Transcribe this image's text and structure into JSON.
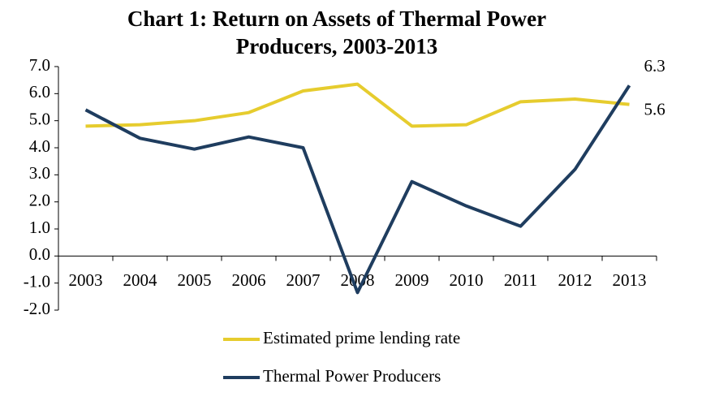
{
  "chart_data": {
    "type": "line",
    "title": "Chart 1: Return on Assets of Thermal Power Producers, 2003-2013",
    "categories": [
      "2003",
      "2004",
      "2005",
      "2006",
      "2007",
      "2008",
      "2009",
      "2010",
      "2011",
      "2012",
      "2013"
    ],
    "series": [
      {
        "name": "Estimated prime lending rate",
        "color": "#e6cc2e",
        "values": [
          4.8,
          4.85,
          5.0,
          5.3,
          6.1,
          6.35,
          4.8,
          4.85,
          5.7,
          5.8,
          5.6
        ]
      },
      {
        "name": "Thermal Power Producers",
        "color": "#1f3d5f",
        "values": [
          5.4,
          4.35,
          3.95,
          4.4,
          4.0,
          -1.35,
          2.75,
          1.85,
          1.1,
          3.2,
          6.3
        ]
      }
    ],
    "ylim": [
      -2,
      7
    ],
    "yticks": [
      {
        "value": -2,
        "label": "-2.0"
      },
      {
        "value": -1,
        "label": "-1.0"
      },
      {
        "value": 0,
        "label": "0.0"
      },
      {
        "value": 1,
        "label": "1.0"
      },
      {
        "value": 2,
        "label": "2.0"
      },
      {
        "value": 3,
        "label": "3.0"
      },
      {
        "value": 4,
        "label": "4.0"
      },
      {
        "value": 5,
        "label": "5.0"
      },
      {
        "value": 6,
        "label": "6.0"
      },
      {
        "value": 7,
        "label": "7.0"
      }
    ],
    "grid": false,
    "legend": "bottom"
  }
}
